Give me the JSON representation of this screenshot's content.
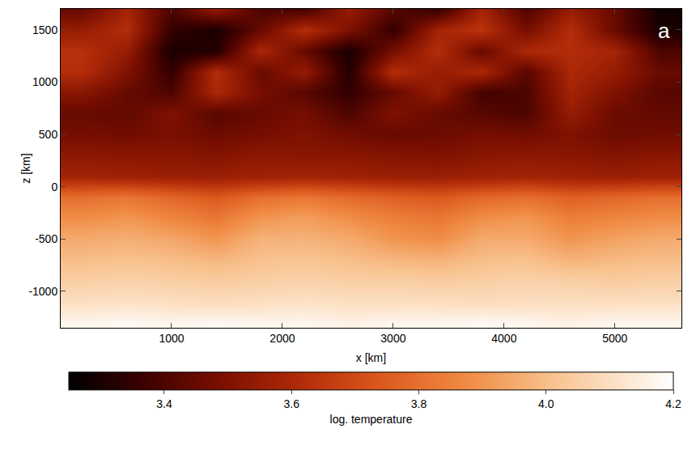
{
  "chart_data": {
    "type": "heatmap",
    "panel_label": "a",
    "x_label": "x [km]",
    "y_label": "z [km]",
    "colorbar_title": "log. temperature",
    "x": [
      200,
      600,
      1000,
      1400,
      1800,
      2200,
      2600,
      3000,
      3400,
      3800,
      4200,
      4600,
      5000,
      5400
    ],
    "y": [
      -1300,
      -1100,
      -900,
      -700,
      -500,
      -300,
      -100,
      100,
      300,
      500,
      700,
      900,
      1100,
      1300,
      1500,
      1700
    ],
    "cells": [
      [
        4.17,
        4.18,
        4.17,
        4.18,
        4.17,
        4.17,
        4.16,
        4.17,
        4.17,
        4.18,
        4.17,
        4.16,
        4.17,
        4.17
      ],
      [
        4.1,
        4.11,
        4.1,
        4.09,
        4.1,
        4.11,
        4.1,
        4.1,
        4.1,
        4.09,
        4.1,
        4.1,
        4.1,
        4.1
      ],
      [
        4.05,
        4.06,
        4.05,
        4.04,
        4.05,
        4.06,
        4.05,
        4.05,
        4.04,
        4.05,
        4.06,
        4.05,
        4.04,
        4.05
      ],
      [
        4.0,
        4.01,
        4.0,
        3.98,
        4.01,
        4.02,
        4.0,
        3.98,
        3.97,
        4.0,
        4.01,
        3.97,
        3.99,
        4.0
      ],
      [
        3.95,
        3.96,
        3.94,
        3.9,
        3.97,
        3.97,
        3.95,
        3.9,
        3.88,
        3.95,
        3.95,
        3.9,
        3.93,
        3.95
      ],
      [
        3.88,
        3.9,
        3.86,
        3.82,
        3.9,
        3.92,
        3.88,
        3.84,
        3.82,
        3.88,
        3.9,
        3.84,
        3.86,
        3.88
      ],
      [
        3.8,
        3.82,
        3.78,
        3.74,
        3.8,
        3.82,
        3.79,
        3.76,
        3.74,
        3.78,
        3.8,
        3.76,
        3.78,
        3.8
      ],
      [
        3.58,
        3.57,
        3.56,
        3.56,
        3.57,
        3.58,
        3.57,
        3.56,
        3.56,
        3.57,
        3.58,
        3.57,
        3.56,
        3.57
      ],
      [
        3.53,
        3.52,
        3.52,
        3.51,
        3.53,
        3.52,
        3.52,
        3.51,
        3.5,
        3.52,
        3.53,
        3.52,
        3.51,
        3.52
      ],
      [
        3.48,
        3.47,
        3.49,
        3.46,
        3.48,
        3.5,
        3.47,
        3.45,
        3.46,
        3.48,
        3.47,
        3.5,
        3.46,
        3.47
      ],
      [
        3.45,
        3.44,
        3.5,
        3.42,
        3.45,
        3.48,
        3.4,
        3.5,
        3.45,
        3.42,
        3.4,
        3.55,
        3.46,
        3.44
      ],
      [
        3.52,
        3.45,
        3.4,
        3.6,
        3.48,
        3.42,
        3.35,
        3.45,
        3.55,
        3.38,
        3.4,
        3.58,
        3.5,
        3.42
      ],
      [
        3.62,
        3.5,
        3.35,
        3.62,
        3.45,
        3.55,
        3.32,
        3.62,
        3.55,
        3.6,
        3.42,
        3.6,
        3.55,
        3.45
      ],
      [
        3.63,
        3.55,
        3.3,
        3.32,
        3.6,
        3.45,
        3.3,
        3.48,
        3.62,
        3.45,
        3.6,
        3.62,
        3.58,
        3.4
      ],
      [
        3.55,
        3.62,
        3.35,
        3.3,
        3.45,
        3.62,
        3.5,
        3.35,
        3.58,
        3.64,
        3.48,
        3.62,
        3.45,
        3.3
      ],
      [
        3.45,
        3.58,
        3.4,
        3.55,
        3.4,
        3.38,
        3.55,
        3.42,
        3.35,
        3.58,
        3.4,
        3.55,
        3.45,
        3.28
      ]
    ],
    "xlim": [
      0,
      5600
    ],
    "ylim": [
      -1350,
      1700
    ],
    "xticks": [
      1000,
      2000,
      3000,
      4000,
      5000
    ],
    "yticks": [
      -1000,
      -500,
      0,
      500,
      1000,
      1500
    ],
    "zlim": [
      3.25,
      4.2
    ],
    "zticks": [
      3.4,
      3.6,
      3.8,
      {
        "value": 4,
        "label": "4.0"
      },
      4.2
    ],
    "grid": false
  }
}
